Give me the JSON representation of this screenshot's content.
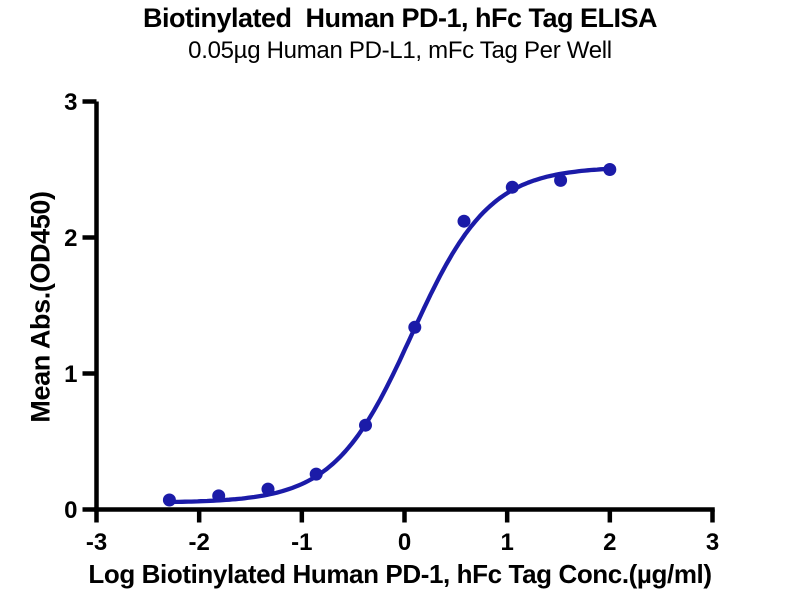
{
  "chart_data": {
    "type": "scatter",
    "title": "Biotinylated  Human PD-1, hFc Tag ELISA",
    "subtitle": "0.05µg Human PD-L1, mFc Tag Per Well",
    "xlabel": "Log Biotinylated Human PD-1, hFc Tag Conc.(µg/ml)",
    "ylabel": "Mean Abs.(OD450)",
    "xlim": [
      -3,
      3
    ],
    "ylim": [
      0,
      3
    ],
    "x_ticks": [
      -3,
      -2,
      -1,
      0,
      1,
      2,
      3
    ],
    "y_ticks": [
      0,
      1,
      2,
      3
    ],
    "grid": false,
    "legend_position": "none",
    "axis_color": "#000000",
    "background_color": "#ffffff",
    "series": [
      {
        "name": "Biotinylated Human PD-1, hFc Tag",
        "color": "#1b1ba8",
        "marker": "circle",
        "x": [
          -2.29,
          -1.81,
          -1.33,
          -0.86,
          -0.38,
          0.1,
          0.58,
          1.05,
          1.52,
          2.0
        ],
        "y": [
          0.07,
          0.1,
          0.15,
          0.26,
          0.62,
          1.34,
          2.12,
          2.37,
          2.42,
          2.5
        ]
      }
    ],
    "fit_curve": {
      "model": "4PL",
      "bottom": 0.05,
      "top": 2.52,
      "logEC50": 0.07,
      "hillslope": 1.15,
      "x_start": -2.29,
      "x_end": 2.0
    }
  }
}
